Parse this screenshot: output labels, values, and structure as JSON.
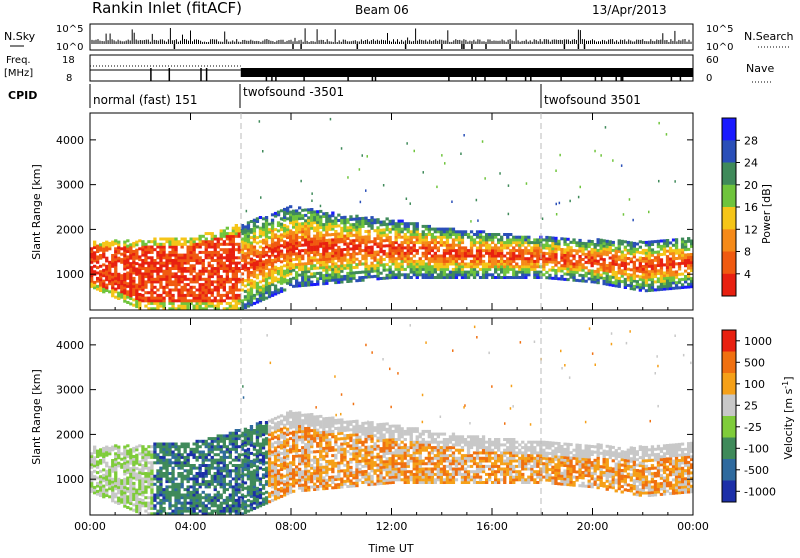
{
  "header": {
    "title": "Rankin Inlet (fitACF)",
    "beam": "Beam 06",
    "date": "13/Apr/2013"
  },
  "panels": {
    "nsky": {
      "label": "N.Sky",
      "ytick_top": "10^5",
      "ytick_bot": "10^0",
      "right_label": "N.Search",
      "rtick_top": "10^5",
      "rtick_bot": "10^0"
    },
    "freq": {
      "label_1": "Freq.",
      "label_2": "[MHz]",
      "ytick_top": "18",
      "ytick_bot": "8",
      "right_label": "Nave",
      "rtick_top": "60",
      "rtick_bot": "0"
    },
    "cpid": {
      "label": "CPID",
      "segments": [
        "normal (fast) 151",
        "twofsound -3501",
        "twofsound 3501"
      ]
    }
  },
  "colorbars": {
    "power": {
      "label": "Power [dB]",
      "ticks": [
        "4",
        "8",
        "12",
        "16",
        "20",
        "24",
        "28"
      ],
      "colors": [
        "#1a1aff",
        "#2a4fb8",
        "#3f8a5a",
        "#6fc43c",
        "#f5c518",
        "#f58a18",
        "#f05a10",
        "#e82010"
      ]
    },
    "velocity": {
      "label": "Velocity [m s",
      "label_sup": "-1",
      "label_end": "]",
      "ticks": [
        "1000",
        "500",
        "100",
        "25",
        "-25",
        "-100",
        "-500",
        "-1000"
      ],
      "colors": [
        "#1c2fa8",
        "#2f6a9e",
        "#3f8a5a",
        "#7fcc3a",
        "#c8c8c8",
        "#f5a018",
        "#f07010",
        "#e82010"
      ]
    }
  },
  "chart_data": [
    {
      "type": "heatmap",
      "name": "power",
      "ylabel": "Slant Range [km]",
      "ylim": [
        200,
        4600
      ],
      "yticks": [
        1000,
        2000,
        3000,
        4000
      ],
      "xlim": [
        0,
        24
      ],
      "xticks": [
        "00:00",
        "04:00",
        "08:00",
        "12:00",
        "16:00",
        "20:00",
        "00:00"
      ],
      "xlabel": "Time UT",
      "cpid_boundaries": [
        6,
        18
      ],
      "echo_band": [
        {
          "t": 0,
          "lo": 700,
          "hi": 1700
        },
        {
          "t": 2,
          "lo": 200,
          "hi": 1750
        },
        {
          "t": 4,
          "lo": 200,
          "hi": 1800
        },
        {
          "t": 6,
          "lo": 200,
          "hi": 2100
        },
        {
          "t": 8,
          "lo": 700,
          "hi": 2500
        },
        {
          "t": 10,
          "lo": 800,
          "hi": 2300
        },
        {
          "t": 12,
          "lo": 900,
          "hi": 2200
        },
        {
          "t": 14,
          "lo": 900,
          "hi": 2000
        },
        {
          "t": 16,
          "lo": 900,
          "hi": 1900
        },
        {
          "t": 18,
          "lo": 900,
          "hi": 1800
        },
        {
          "t": 20,
          "lo": 800,
          "hi": 1750
        },
        {
          "t": 22,
          "lo": 600,
          "hi": 1700
        },
        {
          "t": 24,
          "lo": 700,
          "hi": 1800
        }
      ]
    },
    {
      "type": "heatmap",
      "name": "velocity",
      "ylabel": "Slant Range [km]",
      "ylim": [
        200,
        4600
      ],
      "yticks": [
        1000,
        2000,
        3000,
        4000
      ],
      "xlim": [
        0,
        24
      ],
      "xticks": [
        "00:00",
        "04:00",
        "08:00",
        "12:00",
        "16:00",
        "20:00",
        "00:00"
      ],
      "xlabel": "Time UT"
    }
  ]
}
